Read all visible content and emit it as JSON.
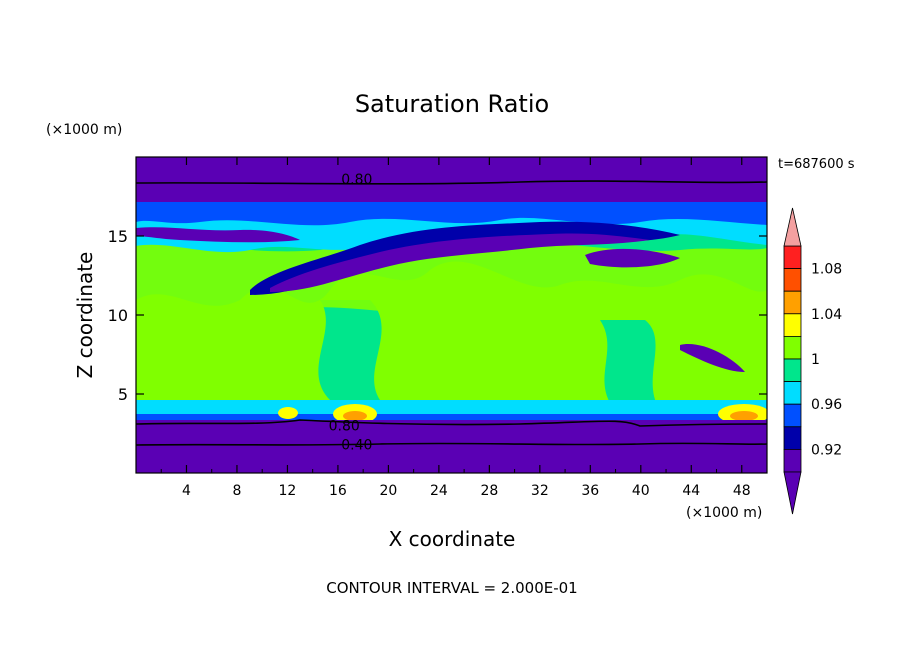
{
  "chart_data": {
    "type": "heatmap",
    "title": "Saturation Ratio",
    "xlabel": "X coordinate",
    "ylabel": "Z coordinate",
    "x_unit": "(×1000 m)",
    "y_unit": "(×1000 m)",
    "time_label": "t=687600 s",
    "footer": "CONTOUR INTERVAL = 2.000E-01",
    "xlim": [
      0,
      50
    ],
    "ylim": [
      0,
      20
    ],
    "x_ticks": [
      4,
      8,
      12,
      16,
      20,
      24,
      28,
      32,
      36,
      40,
      44,
      48
    ],
    "y_ticks": [
      5,
      10,
      15
    ],
    "colorbar": {
      "levels": [
        0.92,
        0.96,
        1,
        1.04,
        1.08
      ],
      "bands": [
        {
          "color": "#5a00b4"
        },
        {
          "color": "#0000aa"
        },
        {
          "color": "#0050ff"
        },
        {
          "color": "#00ddff"
        },
        {
          "color": "#00e68c"
        },
        {
          "color": "#80ff00"
        },
        {
          "color": "#ffff00"
        },
        {
          "color": "#ffa000"
        },
        {
          "color": "#ff5000"
        },
        {
          "color": "#ff2020"
        }
      ],
      "top_arrow_color": "#f4a0a0",
      "bottom_arrow_color": "#5a00b4"
    },
    "contour_labels": [
      {
        "text": "0.80",
        "x": 17.5,
        "y": 18.6
      },
      {
        "text": "0.80",
        "x": 16.5,
        "y": 3.0
      },
      {
        "text": "0.40",
        "x": 17.5,
        "y": 1.8
      }
    ],
    "layers": [
      {
        "name": "bottom-purple",
        "color": "#5a00b4",
        "z": [
          0,
          3.2
        ]
      },
      {
        "name": "low-cyan-green",
        "color": "#00e68c",
        "z": [
          3.2,
          4.0
        ]
      },
      {
        "name": "mid-green",
        "color": "#00e68c",
        "z": [
          4.0,
          12.0
        ]
      },
      {
        "name": "mid-lightgreen",
        "color": "#80ff00",
        "z": [
          4.0,
          11.0
        ]
      },
      {
        "name": "upper-cyan",
        "color": "#00ddff",
        "z": [
          12.0,
          14.0
        ]
      },
      {
        "name": "upper-blue",
        "color": "#0050ff",
        "z": [
          14.0,
          16.5
        ]
      },
      {
        "name": "upper-darkpurple",
        "color": "#5a00b4",
        "z": [
          13.0,
          15.5
        ]
      },
      {
        "name": "top-purple",
        "color": "#5a00b4",
        "z": [
          17.5,
          20
        ]
      }
    ]
  }
}
